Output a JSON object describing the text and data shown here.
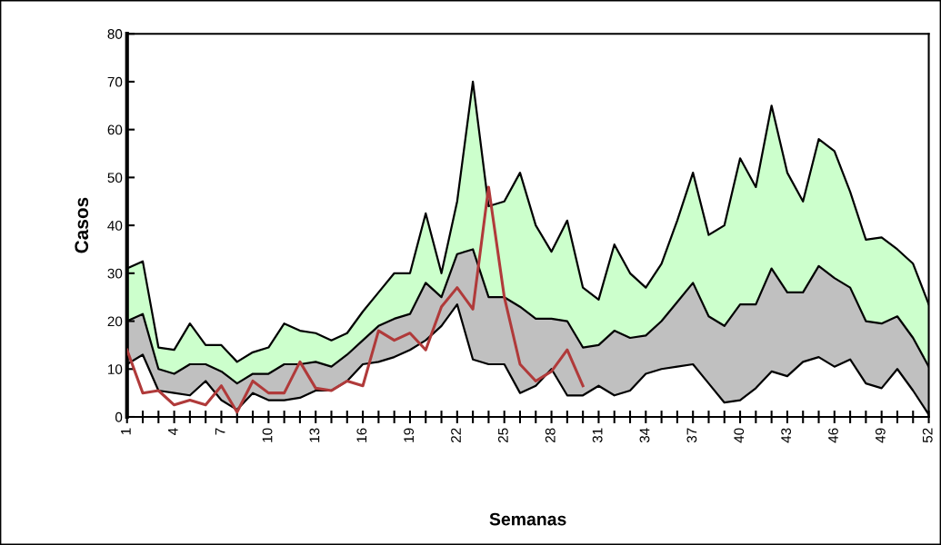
{
  "chart_data": {
    "type": "area",
    "xlabel": "Semanas",
    "ylabel": "Casos",
    "x": [
      1,
      2,
      3,
      4,
      5,
      6,
      7,
      8,
      9,
      10,
      11,
      12,
      13,
      14,
      15,
      16,
      17,
      18,
      19,
      20,
      21,
      22,
      23,
      24,
      25,
      26,
      27,
      28,
      29,
      30,
      31,
      32,
      33,
      34,
      35,
      36,
      37,
      38,
      39,
      40,
      41,
      42,
      43,
      44,
      45,
      46,
      47,
      48,
      49,
      50,
      51,
      52
    ],
    "series": [
      {
        "color": "#ffffff",
        "values": [
          11,
          13,
          5.5,
          5,
          4.5,
          7.5,
          3.5,
          1.5,
          5,
          3.5,
          3.5,
          4,
          5.5,
          5.5,
          7.5,
          11,
          11.5,
          12.5,
          14,
          16,
          19,
          23.5,
          12,
          11,
          11,
          5,
          6.5,
          10,
          4.5,
          4.5,
          6.5,
          4.5,
          5.5,
          9,
          10,
          10.5,
          11,
          7,
          3,
          3.5,
          6,
          9.5,
          8.5,
          11.5,
          12.5,
          10.5,
          12,
          7,
          6,
          10,
          5.5,
          0.5
        ]
      },
      {
        "color": "#c0c0c0",
        "values": [
          20,
          21.5,
          10,
          9,
          11,
          11,
          9.5,
          7,
          9,
          9,
          11,
          11,
          11.5,
          10.5,
          13,
          16,
          19,
          20.5,
          21.5,
          28,
          25,
          34,
          35,
          25,
          25,
          23,
          20.5,
          20.5,
          20,
          14.5,
          15,
          18,
          16.5,
          17,
          20,
          24,
          28,
          21,
          19,
          23.5,
          23.5,
          31,
          26,
          26,
          31.5,
          29,
          27,
          20,
          19.5,
          21,
          16.5,
          10.5
        ]
      },
      {
        "color": "#ccffcc",
        "values": [
          31,
          32.5,
          14.5,
          14,
          19.5,
          15,
          15,
          11.5,
          13.5,
          14.5,
          19.5,
          18,
          17.5,
          16,
          17.5,
          22,
          26,
          30,
          30,
          42.5,
          30,
          45,
          70,
          44,
          45,
          51,
          40,
          34.5,
          41,
          27,
          24.5,
          36,
          30,
          27,
          32,
          41,
          51,
          38,
          40,
          54,
          48,
          65,
          51,
          45,
          58,
          55.5,
          47,
          37,
          37.5,
          35,
          32,
          23.5
        ]
      },
      {
        "type": "line",
        "color": "#b03a3a",
        "x": [
          1,
          2,
          3,
          4,
          5,
          6,
          7,
          8,
          9,
          10,
          11,
          12,
          13,
          14,
          15,
          16,
          17,
          18,
          19,
          20,
          21,
          22,
          23,
          24,
          25,
          26,
          27,
          28,
          29,
          30
        ],
        "values": [
          14,
          5,
          5.5,
          2.5,
          3.5,
          2.5,
          6.5,
          1,
          7.5,
          5,
          5,
          11.5,
          6,
          5.5,
          7.5,
          6.5,
          18,
          16,
          17.5,
          14,
          23,
          27,
          22.5,
          48,
          25,
          11,
          7.5,
          9.5,
          14,
          6.5
        ]
      }
    ],
    "xlim": [
      1,
      52
    ],
    "xticks": [
      1,
      {
        "value": 2,
        "label": null
      },
      {
        "value": 3,
        "label": null
      },
      4,
      {
        "value": 5,
        "label": null
      },
      {
        "value": 6,
        "label": null
      },
      7,
      {
        "value": 8,
        "label": null
      },
      {
        "value": 9,
        "label": null
      },
      10,
      {
        "value": 11,
        "label": null
      },
      {
        "value": 12,
        "label": null
      },
      13,
      {
        "value": 14,
        "label": null
      },
      {
        "value": 15,
        "label": null
      },
      16,
      {
        "value": 17,
        "label": null
      },
      {
        "value": 18,
        "label": null
      },
      19,
      {
        "value": 20,
        "label": null
      },
      {
        "value": 21,
        "label": null
      },
      22,
      {
        "value": 23,
        "label": null
      },
      {
        "value": 24,
        "label": null
      },
      25,
      {
        "value": 26,
        "label": null
      },
      {
        "value": 27,
        "label": null
      },
      28,
      {
        "value": 29,
        "label": null
      },
      {
        "value": 30,
        "label": null
      },
      31,
      {
        "value": 32,
        "label": null
      },
      {
        "value": 33,
        "label": null
      },
      34,
      {
        "value": 35,
        "label": null
      },
      {
        "value": 36,
        "label": null
      },
      37,
      {
        "value": 38,
        "label": null
      },
      {
        "value": 39,
        "label": null
      },
      40,
      {
        "value": 41,
        "label": null
      },
      {
        "value": 42,
        "label": null
      },
      43,
      {
        "value": 44,
        "label": null
      },
      {
        "value": 45,
        "label": null
      },
      46,
      {
        "value": 47,
        "label": null
      },
      {
        "value": 48,
        "label": null
      },
      49,
      {
        "value": 50,
        "label": null
      },
      {
        "value": 51,
        "label": null
      },
      52
    ],
    "ylim": [
      0,
      80
    ],
    "yticks": [
      0,
      10,
      20,
      30,
      40,
      50,
      60,
      70,
      80
    ],
    "grid": false,
    "legend": false
  }
}
